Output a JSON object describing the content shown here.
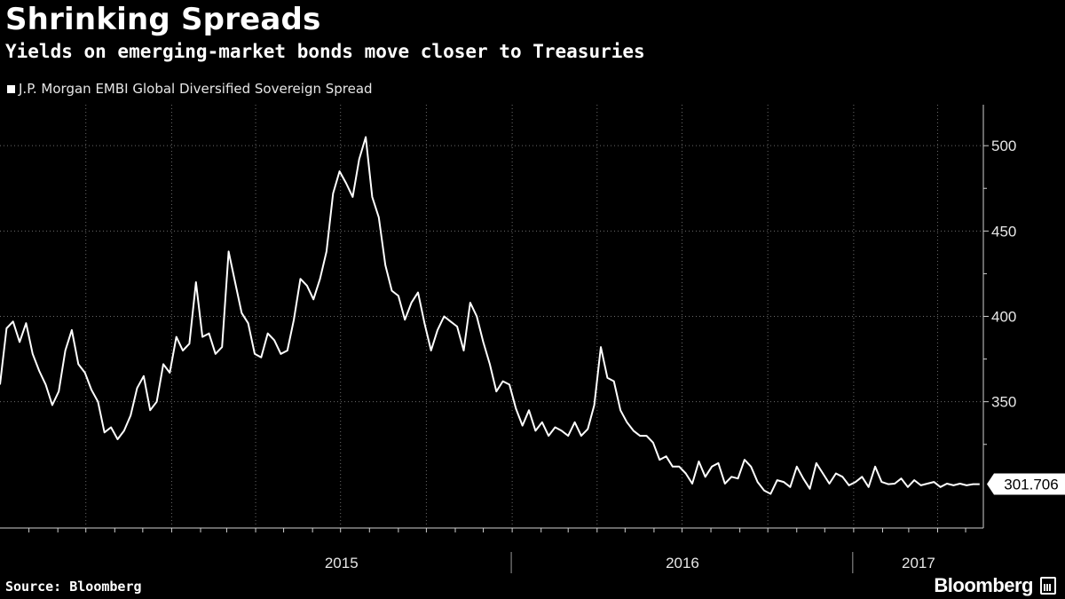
{
  "header": {
    "title": "Shrinking Spreads",
    "subtitle": "Yields on emerging-market bonds move closer to Treasuries"
  },
  "footer": {
    "source": "Source: Bloomberg",
    "brand": "Bloomberg"
  },
  "colors": {
    "background": "#000000",
    "line": "#ffffff",
    "grid": "#6b6b6b"
  },
  "chart_data": {
    "type": "line",
    "title": "Shrinking Spreads",
    "subtitle": "Yields on emerging-market bonds move closer to Treasuries",
    "xlabel": "",
    "ylabel": "",
    "legend": {
      "placement": "top-left",
      "entries": [
        "J.P. Morgan EMBI Global Diversified Sovereign Spread"
      ]
    },
    "y_axis": {
      "side": "right",
      "ticks": [
        350,
        400,
        450,
        500
      ],
      "ylim": [
        276,
        524
      ]
    },
    "x_axis": {
      "labels": [
        "2015",
        "2016",
        "2017"
      ],
      "xlim": [
        "2014-07-01",
        "2017-05-20"
      ]
    },
    "grid": "dotted-both",
    "last_value_label": "301.706",
    "series": [
      {
        "name": "J.P. Morgan EMBI Global Diversified Sovereign Spread",
        "x": [
          "2014-07-01",
          "2014-07-08",
          "2014-07-15",
          "2014-07-22",
          "2014-07-29",
          "2014-08-05",
          "2014-08-12",
          "2014-08-19",
          "2014-08-26",
          "2014-09-02",
          "2014-09-09",
          "2014-09-16",
          "2014-09-23",
          "2014-09-30",
          "2014-10-07",
          "2014-10-14",
          "2014-10-21",
          "2014-10-28",
          "2014-11-04",
          "2014-11-11",
          "2014-11-18",
          "2014-11-25",
          "2014-12-02",
          "2014-12-09",
          "2014-12-16",
          "2014-12-23",
          "2014-12-30",
          "2015-01-06",
          "2015-01-13",
          "2015-01-20",
          "2015-01-27",
          "2015-02-03",
          "2015-02-10",
          "2015-02-17",
          "2015-02-24",
          "2015-03-03",
          "2015-03-10",
          "2015-03-17",
          "2015-03-24",
          "2015-03-31",
          "2015-04-07",
          "2015-04-14",
          "2015-04-21",
          "2015-04-28",
          "2015-05-05",
          "2015-05-12",
          "2015-05-19",
          "2015-05-26",
          "2015-06-02",
          "2015-06-09",
          "2015-06-16",
          "2015-06-23",
          "2015-06-30",
          "2015-07-07",
          "2015-07-14",
          "2015-07-21",
          "2015-07-28",
          "2015-08-04",
          "2015-08-11",
          "2015-08-18",
          "2015-08-25",
          "2015-09-01",
          "2015-09-08",
          "2015-09-15",
          "2015-09-22",
          "2015-09-29",
          "2015-10-06",
          "2015-10-13",
          "2015-10-20",
          "2015-10-27",
          "2015-11-03",
          "2015-11-10",
          "2015-11-17",
          "2015-11-24",
          "2015-12-01",
          "2015-12-08",
          "2015-12-15",
          "2015-12-22",
          "2015-12-29",
          "2016-01-05",
          "2016-01-12",
          "2016-01-19",
          "2016-01-26",
          "2016-02-02",
          "2016-02-09",
          "2016-02-16",
          "2016-02-23",
          "2016-03-01",
          "2016-03-08",
          "2016-03-15",
          "2016-03-22",
          "2016-03-29",
          "2016-04-05",
          "2016-04-12",
          "2016-04-19",
          "2016-04-26",
          "2016-05-03",
          "2016-05-10",
          "2016-05-17",
          "2016-05-24",
          "2016-05-31",
          "2016-06-07",
          "2016-06-14",
          "2016-06-21",
          "2016-06-28",
          "2016-07-05",
          "2016-07-12",
          "2016-07-19",
          "2016-07-26",
          "2016-08-02",
          "2016-08-09",
          "2016-08-16",
          "2016-08-23",
          "2016-08-30",
          "2016-09-06",
          "2016-09-13",
          "2016-09-20",
          "2016-09-27",
          "2016-10-04",
          "2016-10-11",
          "2016-10-18",
          "2016-10-25",
          "2016-11-01",
          "2016-11-08",
          "2016-11-15",
          "2016-11-22",
          "2016-11-29",
          "2016-12-06",
          "2016-12-13",
          "2016-12-20",
          "2016-12-27",
          "2017-01-03",
          "2017-01-10",
          "2017-01-17",
          "2017-01-24",
          "2017-01-31",
          "2017-02-07",
          "2017-02-14",
          "2017-02-21",
          "2017-02-28",
          "2017-03-07",
          "2017-03-14",
          "2017-03-21",
          "2017-03-28",
          "2017-04-04",
          "2017-04-11",
          "2017-04-18",
          "2017-04-25",
          "2017-05-02",
          "2017-05-09",
          "2017-05-16"
        ],
        "values": [
          360,
          393,
          397,
          385,
          396,
          378,
          368,
          360,
          348,
          356,
          380,
          392,
          372,
          367,
          357,
          350,
          332,
          335,
          328,
          333,
          342,
          358,
          365,
          345,
          350,
          372,
          367,
          388,
          380,
          384,
          420,
          388,
          390,
          378,
          382,
          438,
          420,
          402,
          396,
          378,
          376,
          390,
          386,
          378,
          380,
          398,
          422,
          418,
          410,
          422,
          438,
          472,
          485,
          478,
          470,
          492,
          505,
          470,
          458,
          430,
          415,
          412,
          398,
          408,
          414,
          396,
          380,
          392,
          400,
          397,
          394,
          380,
          408,
          400,
          385,
          372,
          356,
          362,
          360,
          346,
          336,
          345,
          333,
          338,
          330,
          335,
          333,
          330,
          338,
          330,
          334,
          348,
          382,
          364,
          362,
          345,
          338,
          333,
          330,
          330,
          326,
          316,
          318,
          312,
          312,
          308,
          302,
          315,
          306,
          312,
          314,
          302,
          306,
          305,
          316,
          312,
          303,
          298,
          296,
          304,
          303,
          300,
          312,
          305,
          299,
          314,
          308,
          302,
          308,
          306,
          301,
          303,
          306,
          300,
          312,
          303,
          301.706,
          302,
          305,
          300,
          304,
          301,
          302,
          303,
          300,
          302,
          301,
          302,
          301,
          301.706,
          301.706
        ]
      }
    ]
  }
}
